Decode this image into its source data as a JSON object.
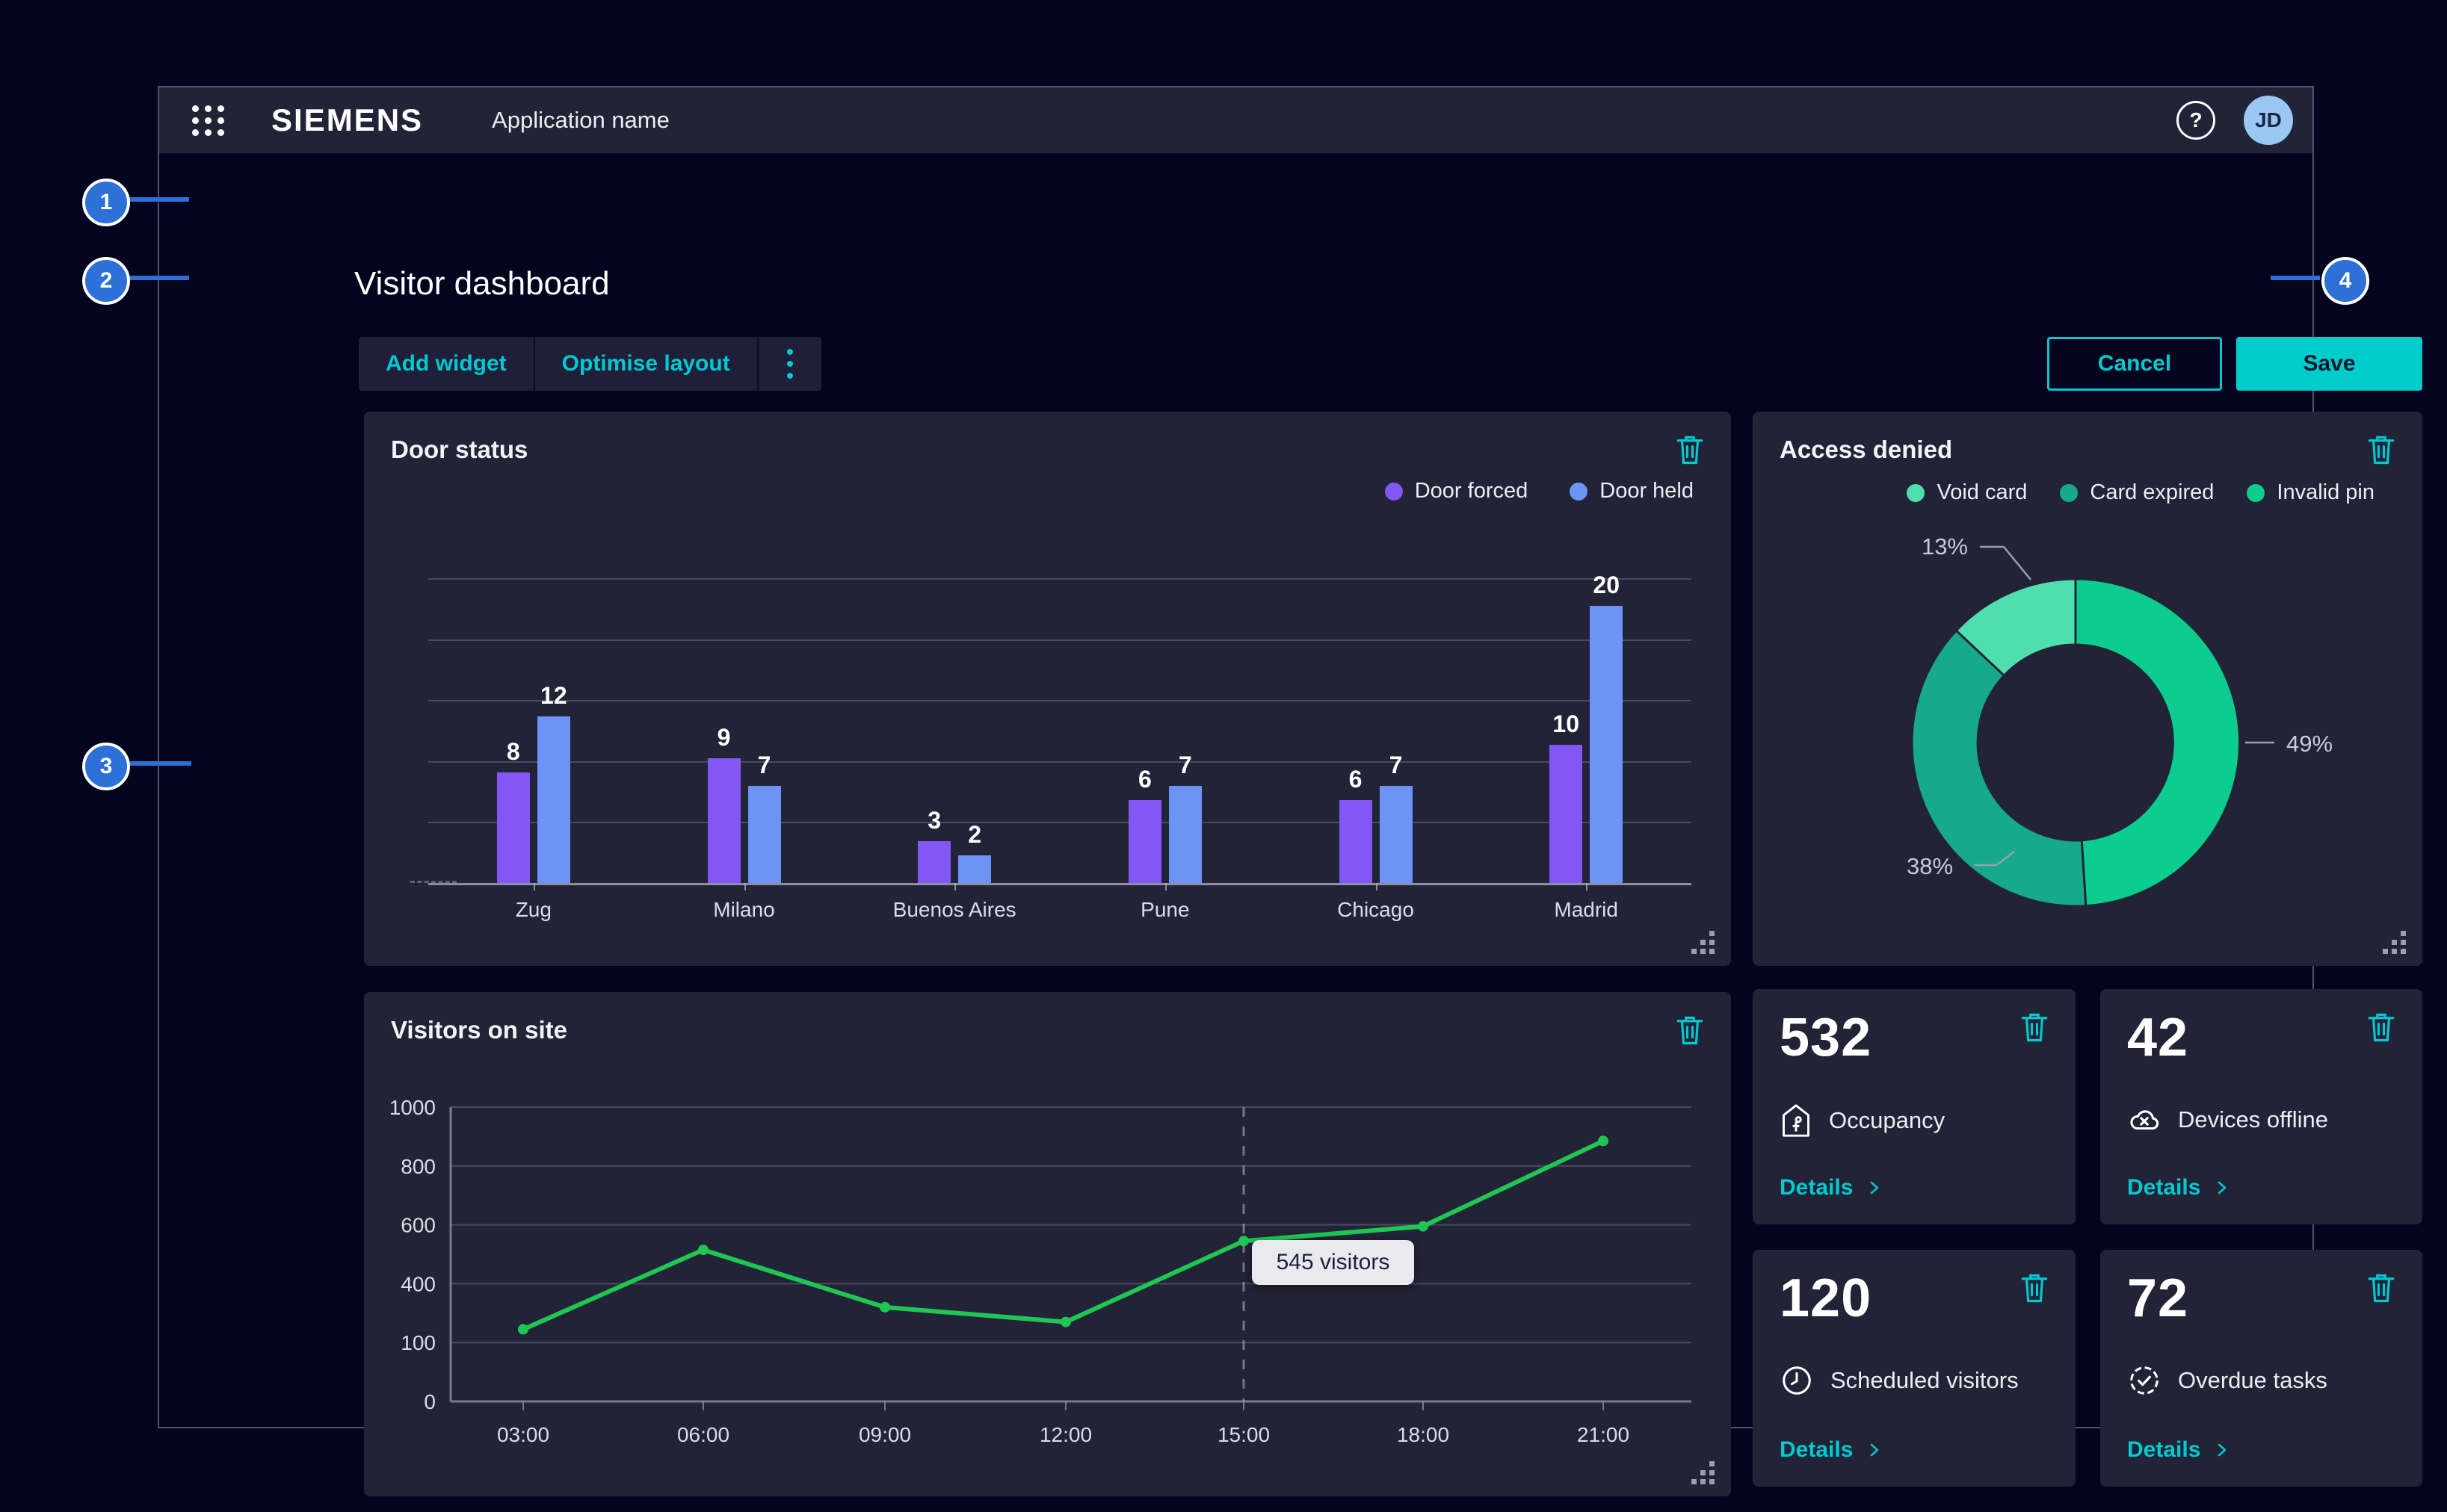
{
  "app": {
    "brand": "SIEMENS",
    "name": "Application name",
    "avatar": "JD",
    "help_icon": "question-mark"
  },
  "page": {
    "title": "Visitor dashboard"
  },
  "toolbar": {
    "add_widget": "Add widget",
    "optimise_layout": "Optimise layout",
    "cancel": "Cancel",
    "save": "Save"
  },
  "annotations": {
    "markers": [
      "1",
      "2",
      "3",
      "4"
    ]
  },
  "colors": {
    "accent_cyan": "#00C9CF",
    "save_fill": "#00CCCC",
    "marker_blue": "#2D70D8",
    "card_bg": "#232337",
    "page_bg": "#04041E",
    "line_green": "#1FC653"
  },
  "widgets": {
    "door_status": {
      "title": "Door status",
      "legend": [
        {
          "label": "Door forced",
          "color": "#8257F5"
        },
        {
          "label": "Door held",
          "color": "#6C93F5"
        }
      ]
    },
    "access_denied": {
      "title": "Access denied",
      "legend": [
        {
          "label": "Void card",
          "color": "#4FDFAE"
        },
        {
          "label": "Card expired",
          "color": "#16A98C"
        },
        {
          "label": "Invalid pin",
          "color": "#0CCD8D"
        }
      ]
    },
    "visitors": {
      "title": "Visitors on site",
      "tooltip": "545 visitors"
    },
    "kpis": [
      {
        "value": "532",
        "label": "Occupancy",
        "details": "Details",
        "icon": "occupancy-icon"
      },
      {
        "value": "42",
        "label": "Devices offline",
        "details": "Details",
        "icon": "devices-offline-icon"
      },
      {
        "value": "120",
        "label": "Scheduled visitors",
        "details": "Details",
        "icon": "scheduled-visitors-icon"
      },
      {
        "value": "72",
        "label": "Overdue tasks",
        "details": "Details",
        "icon": "overdue-tasks-icon"
      }
    ]
  },
  "chart_data": [
    {
      "type": "bar",
      "title": "Door status",
      "categories": [
        "Zug",
        "Milano",
        "Buenos Aires",
        "Pune",
        "Chicago",
        "Madrid"
      ],
      "series": [
        {
          "name": "Door forced",
          "color": "#8257F5",
          "values": [
            8,
            9,
            3,
            6,
            6,
            10
          ]
        },
        {
          "name": "Door held",
          "color": "#6C93F5",
          "values": [
            12,
            7,
            2,
            7,
            7,
            20
          ]
        }
      ],
      "ylim": [
        0,
        22
      ],
      "grid": true,
      "legend_position": "top-right"
    },
    {
      "type": "pie",
      "title": "Access denied",
      "donut": true,
      "segments": [
        {
          "label": "Invalid pin",
          "pct": 49,
          "display": "49%",
          "color": "#0CCD8D"
        },
        {
          "label": "Card expired",
          "pct": 38,
          "display": "38%",
          "color": "#16A98C"
        },
        {
          "label": "Void card",
          "pct": 13,
          "display": "13%",
          "color": "#4FDFAE"
        }
      ],
      "legend_position": "top"
    },
    {
      "type": "line",
      "title": "Visitors on site",
      "x": [
        "03:00",
        "06:00",
        "09:00",
        "12:00",
        "15:00",
        "18:00",
        "21:00"
      ],
      "values": [
        245,
        515,
        320,
        270,
        545,
        595,
        885
      ],
      "ylabels": [
        "0",
        "100",
        "400",
        "600",
        "800",
        "1000"
      ],
      "ylim": [
        0,
        1000
      ],
      "color": "#1FC653",
      "annotation": {
        "x": "15:00",
        "text": "545 visitors"
      },
      "grid": true
    }
  ]
}
